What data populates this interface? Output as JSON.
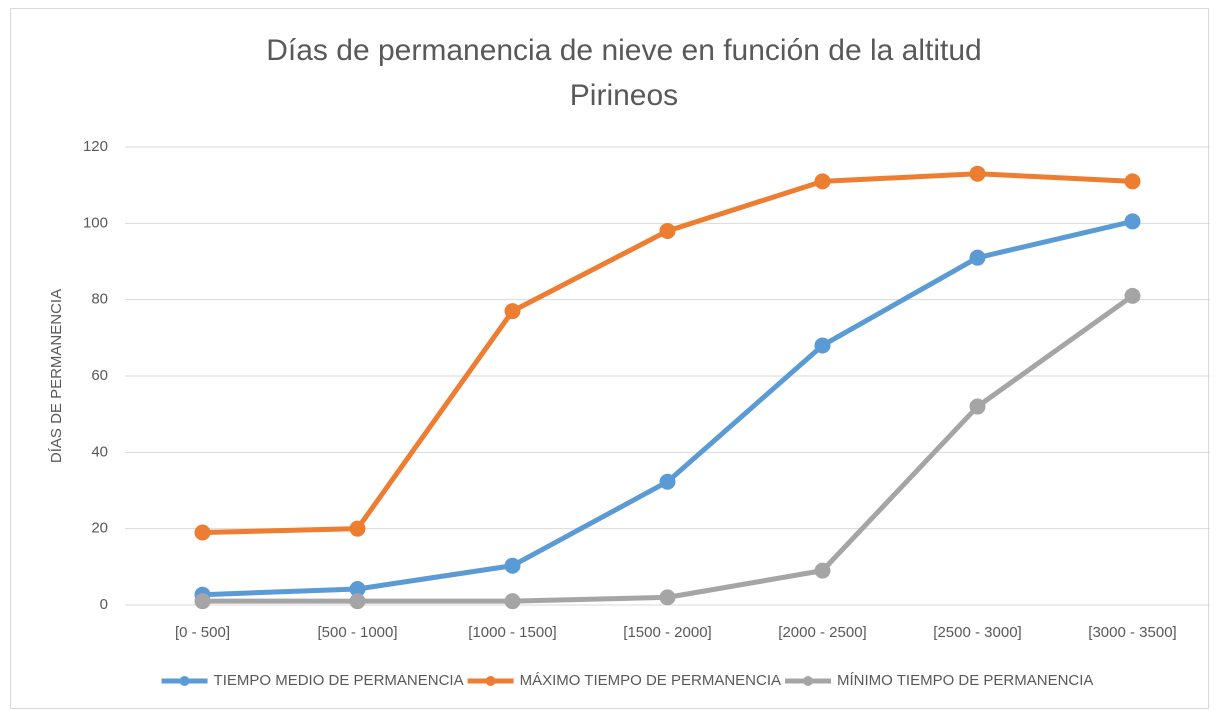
{
  "chart_data": {
    "type": "line",
    "title": "Días de permanencia de nieve en función de la altitud",
    "subtitle": "Pirineos",
    "y_label": "DÍAS DE PERMANENCIA",
    "categories": [
      "[0 - 500]",
      "[500 - 1000]",
      "[1000 - 1500]",
      "[1500 - 2000]",
      "[2000 - 2500]",
      "[2500 - 3000]",
      "[3000 - 3500]"
    ],
    "series": [
      {
        "name": "TIEMPO MEDIO DE PERMANENCIA",
        "color": "#5b9bd5",
        "values": [
          2.7,
          4.2,
          10.3,
          32.3,
          68,
          91,
          100.5
        ]
      },
      {
        "name": "MÁXIMO TIEMPO DE PERMANENCIA",
        "color": "#ed7d31",
        "values": [
          19,
          20,
          77,
          98,
          111,
          113,
          111
        ]
      },
      {
        "name": "MÍNIMO TIEMPO DE PERMANENCIA",
        "color": "#a5a5a5",
        "values": [
          1,
          1,
          1,
          2,
          9,
          52,
          81
        ]
      }
    ],
    "ylim": [
      0,
      120
    ],
    "yticks": [
      0,
      20,
      40,
      60,
      80,
      100,
      120
    ],
    "grid": true,
    "legend": "bottom"
  }
}
